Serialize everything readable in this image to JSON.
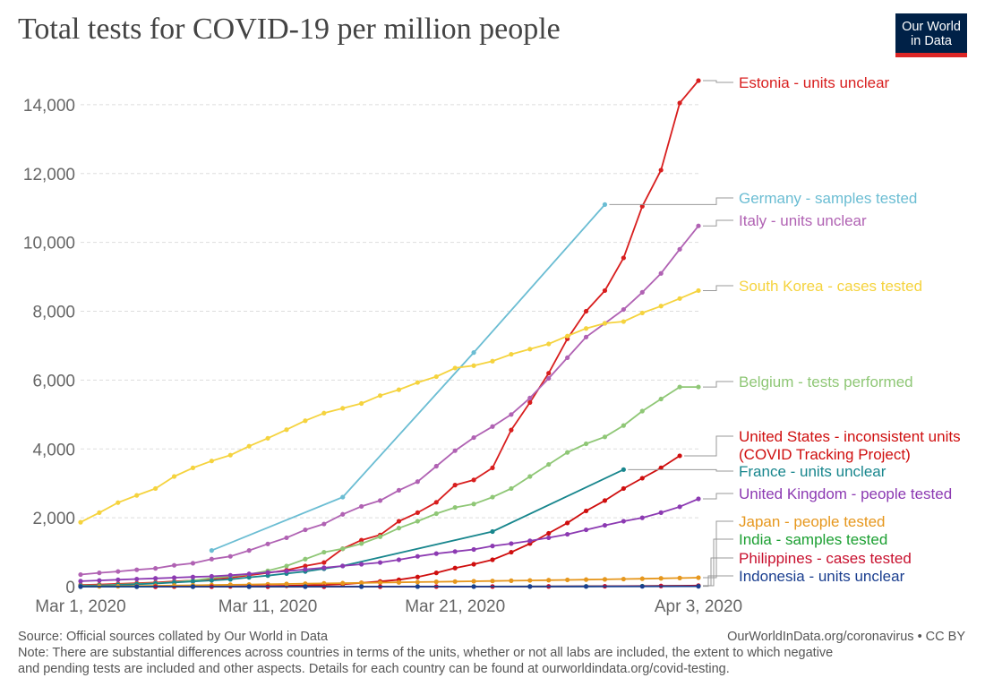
{
  "title": "Total tests for COVID-19 per million people",
  "logo": {
    "line1": "Our World",
    "line2": "in Data"
  },
  "footer": {
    "source": "Source: Official sources collated by Our World in Data",
    "credit": "OurWorldInData.org/coronavirus • CC BY",
    "note_line1": "Note: There are substantial differences across countries in terms of the units, whether or not all labs are included, the extent to which negative",
    "note_line2": "and pending tests are included and other aspects. Details for each country can be found at ourworldindata.org/covid-testing."
  },
  "chart_data": {
    "type": "line",
    "title": "Total tests for COVID-19 per million people",
    "x_ticks": [
      {
        "day": 0,
        "label": "Mar 1, 2020"
      },
      {
        "day": 10,
        "label": "Mar 11, 2020"
      },
      {
        "day": 20,
        "label": "Mar 21, 2020"
      },
      {
        "day": 33,
        "label": "Apr 3, 2020"
      }
    ],
    "xlim": [
      0,
      33
    ],
    "ylim": [
      0,
      14700
    ],
    "y_ticks": [
      {
        "value": 0,
        "label": "0"
      },
      {
        "value": 2000,
        "label": "2,000"
      },
      {
        "value": 4000,
        "label": "4,000"
      },
      {
        "value": 6000,
        "label": "6,000"
      },
      {
        "value": 8000,
        "label": "8,000"
      },
      {
        "value": 10000,
        "label": "10,000"
      },
      {
        "value": 12000,
        "label": "12,000"
      },
      {
        "value": 14000,
        "label": "14,000"
      }
    ],
    "grid": true,
    "series": [
      {
        "name": "Estonia - units unclear",
        "color": "#d81e1e",
        "x": [
          0,
          1,
          2,
          3,
          4,
          5,
          6,
          7,
          8,
          9,
          10,
          11,
          12,
          13,
          14,
          15,
          16,
          17,
          18,
          19,
          20,
          21,
          22,
          23,
          24,
          25,
          26,
          27,
          28,
          29,
          30,
          31,
          32,
          33
        ],
        "y": [
          50,
          60,
          80,
          100,
          120,
          150,
          180,
          220,
          260,
          330,
          400,
          480,
          600,
          700,
          1100,
          1350,
          1500,
          1900,
          2150,
          2450,
          2950,
          3100,
          3450,
          4550,
          5350,
          6200,
          7200,
          8000,
          8600,
          9550,
          11050,
          12100,
          14050,
          14700
        ]
      },
      {
        "name": "Germany - samples tested",
        "color": "#6bbdd3",
        "x": [
          7,
          14,
          21,
          28
        ],
        "y": [
          1050,
          2600,
          6800,
          11100
        ]
      },
      {
        "name": "Italy - units unclear",
        "color": "#b062b3",
        "x": [
          0,
          1,
          2,
          3,
          4,
          5,
          6,
          7,
          8,
          9,
          10,
          11,
          12,
          13,
          14,
          15,
          16,
          17,
          18,
          19,
          20,
          21,
          22,
          23,
          24,
          25,
          26,
          27,
          28,
          29,
          30,
          31,
          32,
          33
        ],
        "y": [
          350,
          400,
          440,
          490,
          530,
          620,
          680,
          800,
          880,
          1050,
          1240,
          1420,
          1650,
          1820,
          2100,
          2330,
          2500,
          2800,
          3050,
          3500,
          3950,
          4330,
          4650,
          5000,
          5480,
          6050,
          6650,
          7250,
          7650,
          8050,
          8550,
          9100,
          9800,
          10480
        ]
      },
      {
        "name": "South Korea - cases tested",
        "color": "#f5d33e",
        "x": [
          0,
          1,
          2,
          3,
          4,
          5,
          6,
          7,
          8,
          9,
          10,
          11,
          12,
          13,
          14,
          15,
          16,
          17,
          18,
          19,
          20,
          21,
          22,
          23,
          24,
          25,
          26,
          27,
          28,
          29,
          30,
          31,
          32,
          33
        ],
        "y": [
          1870,
          2150,
          2440,
          2650,
          2850,
          3200,
          3450,
          3650,
          3820,
          4080,
          4310,
          4560,
          4820,
          5040,
          5180,
          5320,
          5550,
          5720,
          5930,
          6100,
          6350,
          6420,
          6550,
          6750,
          6900,
          7050,
          7280,
          7500,
          7650,
          7700,
          7950,
          8150,
          8370,
          8600
        ]
      },
      {
        "name": "Belgium - tests performed",
        "color": "#8fc776",
        "x": [
          0,
          1,
          2,
          3,
          4,
          5,
          6,
          7,
          8,
          9,
          10,
          11,
          12,
          13,
          14,
          15,
          16,
          17,
          18,
          19,
          20,
          21,
          22,
          23,
          24,
          25,
          26,
          27,
          28,
          29,
          30,
          31,
          32,
          33
        ],
        "y": [
          30,
          40,
          60,
          80,
          100,
          130,
          180,
          250,
          300,
          360,
          460,
          600,
          800,
          1000,
          1100,
          1250,
          1450,
          1700,
          1900,
          2120,
          2300,
          2400,
          2600,
          2850,
          3200,
          3550,
          3900,
          4150,
          4350,
          4680,
          5100,
          5450,
          5800,
          5800
        ]
      },
      {
        "name": "United States - inconsistent units (COVID Tracking Project)",
        "color": "#cf0e0e",
        "x": [
          4,
          5,
          6,
          7,
          8,
          9,
          10,
          11,
          12,
          13,
          14,
          15,
          16,
          17,
          18,
          19,
          20,
          21,
          22,
          23,
          24,
          25,
          26,
          27,
          28,
          29,
          30,
          31,
          32
        ],
        "y": [
          0,
          1,
          2,
          5,
          8,
          12,
          18,
          26,
          35,
          50,
          70,
          110,
          150,
          200,
          280,
          400,
          540,
          650,
          780,
          1000,
          1250,
          1550,
          1850,
          2200,
          2500,
          2850,
          3150,
          3450,
          3800
        ]
      },
      {
        "name": "France - units unclear",
        "color": "#18868d",
        "x": [
          0,
          1,
          2,
          3,
          4,
          5,
          6,
          7,
          8,
          9,
          10,
          11,
          12,
          13,
          14,
          22,
          29
        ],
        "y": [
          20,
          30,
          50,
          70,
          90,
          120,
          150,
          180,
          210,
          270,
          320,
          380,
          440,
          520,
          600,
          1600,
          3400
        ]
      },
      {
        "name": "United Kingdom - people tested",
        "color": "#8c3ab2",
        "x": [
          0,
          1,
          2,
          3,
          4,
          5,
          6,
          7,
          8,
          9,
          10,
          11,
          12,
          13,
          14,
          15,
          16,
          17,
          18,
          19,
          20,
          21,
          22,
          23,
          24,
          25,
          26,
          27,
          28,
          29,
          30,
          31,
          32,
          33
        ],
        "y": [
          160,
          180,
          200,
          220,
          240,
          260,
          280,
          300,
          330,
          370,
          410,
          450,
          500,
          550,
          600,
          650,
          700,
          780,
          880,
          960,
          1020,
          1080,
          1180,
          1250,
          1330,
          1420,
          1520,
          1650,
          1780,
          1900,
          2000,
          2150,
          2320,
          2550
        ]
      },
      {
        "name": "Japan - people tested",
        "color": "#e6971d",
        "x": [
          0,
          1,
          2,
          3,
          4,
          5,
          6,
          7,
          8,
          9,
          10,
          11,
          12,
          13,
          14,
          15,
          16,
          17,
          18,
          19,
          20,
          21,
          22,
          23,
          24,
          25,
          26,
          27,
          28,
          29,
          30,
          31,
          32,
          33
        ],
        "y": [
          5,
          8,
          12,
          18,
          25,
          32,
          40,
          48,
          55,
          62,
          70,
          78,
          86,
          94,
          100,
          108,
          116,
          124,
          132,
          140,
          148,
          156,
          164,
          172,
          180,
          188,
          196,
          204,
          212,
          220,
          230,
          240,
          250,
          260
        ]
      },
      {
        "name": "India - samples tested",
        "color": "#1b9f31",
        "x": [
          0,
          3,
          6,
          9,
          12,
          15,
          18,
          21,
          24,
          27,
          30,
          33
        ],
        "y": [
          0,
          0,
          0,
          0,
          1,
          1,
          2,
          3,
          5,
          8,
          15,
          25
        ]
      },
      {
        "name": "Philippines - cases tested",
        "color": "#c8102e",
        "x": [
          4,
          7,
          10,
          13,
          16,
          19,
          22,
          25,
          28,
          31,
          33
        ],
        "y": [
          0,
          0,
          0,
          0,
          0,
          1,
          3,
          6,
          12,
          20,
          30
        ]
      },
      {
        "name": "Indonesia - units unclear",
        "color": "#1a3e8f",
        "x": [
          0,
          3,
          6,
          9,
          12,
          15,
          18,
          21,
          24,
          27,
          30,
          33
        ],
        "y": [
          0,
          0,
          0,
          0,
          0,
          0,
          1,
          2,
          3,
          5,
          8,
          10
        ]
      }
    ],
    "labels": [
      {
        "lines": [
          "Estonia - units unclear"
        ],
        "series": 0
      },
      {
        "lines": [
          "Germany - samples tested"
        ],
        "series": 1
      },
      {
        "lines": [
          "Italy - units unclear"
        ],
        "series": 2
      },
      {
        "lines": [
          "South Korea - cases tested"
        ],
        "series": 3
      },
      {
        "lines": [
          "Belgium - tests performed"
        ],
        "series": 4
      },
      {
        "lines": [
          "United States - inconsistent units",
          "(COVID Tracking Project)"
        ],
        "series": 5
      },
      {
        "lines": [
          "France - units unclear"
        ],
        "series": 6
      },
      {
        "lines": [
          "United Kingdom - people tested"
        ],
        "series": 7
      },
      {
        "lines": [
          "Japan - people tested"
        ],
        "series": 8
      },
      {
        "lines": [
          "India - samples tested"
        ],
        "series": 9
      },
      {
        "lines": [
          "Philippines - cases tested"
        ],
        "series": 10
      },
      {
        "lines": [
          "Indonesia - units unclear"
        ],
        "series": 11
      }
    ]
  }
}
